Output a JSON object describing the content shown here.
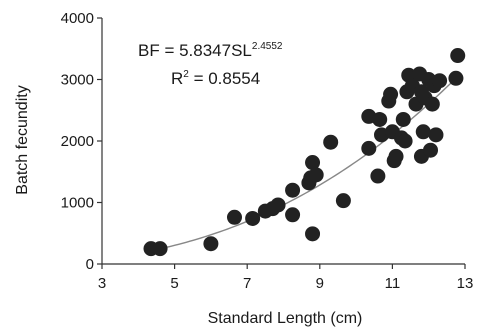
{
  "chart_data": {
    "type": "scatter",
    "xlabel": "Standard Length (cm)",
    "ylabel": "Batch fecundity",
    "xlim": [
      3,
      13
    ],
    "ylim": [
      0,
      4000
    ],
    "x_ticks": [
      3,
      5,
      7,
      9,
      11,
      13
    ],
    "y_ticks": [
      0,
      1000,
      2000,
      3000,
      4000
    ],
    "grid": false,
    "equation": {
      "lhs": "BF = 5.8347SL",
      "exponent": "2.4552",
      "r2_lhs": "R",
      "r2_sup": "2",
      "r2_rhs": " = 0.8554"
    },
    "fit": {
      "a": 5.8347,
      "b": 2.4552,
      "x_range": [
        4.5,
        12.7
      ]
    },
    "point_color": "#222222",
    "curve_color": "#888888",
    "points": [
      {
        "x": 4.35,
        "y": 250
      },
      {
        "x": 4.6,
        "y": 250
      },
      {
        "x": 6.0,
        "y": 330
      },
      {
        "x": 6.65,
        "y": 760
      },
      {
        "x": 7.15,
        "y": 740
      },
      {
        "x": 7.5,
        "y": 860
      },
      {
        "x": 7.7,
        "y": 900
      },
      {
        "x": 7.85,
        "y": 960
      },
      {
        "x": 8.25,
        "y": 800
      },
      {
        "x": 8.25,
        "y": 1200
      },
      {
        "x": 8.7,
        "y": 1320
      },
      {
        "x": 8.75,
        "y": 1400
      },
      {
        "x": 8.8,
        "y": 1650
      },
      {
        "x": 8.9,
        "y": 1450
      },
      {
        "x": 8.8,
        "y": 490
      },
      {
        "x": 9.3,
        "y": 1980
      },
      {
        "x": 9.65,
        "y": 1030
      },
      {
        "x": 10.35,
        "y": 2400
      },
      {
        "x": 10.35,
        "y": 1880
      },
      {
        "x": 10.6,
        "y": 1430
      },
      {
        "x": 10.65,
        "y": 2350
      },
      {
        "x": 10.7,
        "y": 2100
      },
      {
        "x": 10.9,
        "y": 2650
      },
      {
        "x": 10.95,
        "y": 2760
      },
      {
        "x": 11.0,
        "y": 2150
      },
      {
        "x": 11.05,
        "y": 1680
      },
      {
        "x": 11.1,
        "y": 1750
      },
      {
        "x": 11.25,
        "y": 2050
      },
      {
        "x": 11.3,
        "y": 2350
      },
      {
        "x": 11.35,
        "y": 2000
      },
      {
        "x": 11.4,
        "y": 2800
      },
      {
        "x": 11.45,
        "y": 3070
      },
      {
        "x": 11.55,
        "y": 2900
      },
      {
        "x": 11.65,
        "y": 2600
      },
      {
        "x": 11.75,
        "y": 3090
      },
      {
        "x": 11.8,
        "y": 2800
      },
      {
        "x": 11.85,
        "y": 2150
      },
      {
        "x": 11.8,
        "y": 1750
      },
      {
        "x": 11.9,
        "y": 2700
      },
      {
        "x": 12.0,
        "y": 3000
      },
      {
        "x": 12.05,
        "y": 1850
      },
      {
        "x": 12.1,
        "y": 2600
      },
      {
        "x": 12.15,
        "y": 2900
      },
      {
        "x": 12.2,
        "y": 2100
      },
      {
        "x": 12.3,
        "y": 2980
      },
      {
        "x": 12.75,
        "y": 3020
      },
      {
        "x": 12.8,
        "y": 3390
      }
    ]
  }
}
